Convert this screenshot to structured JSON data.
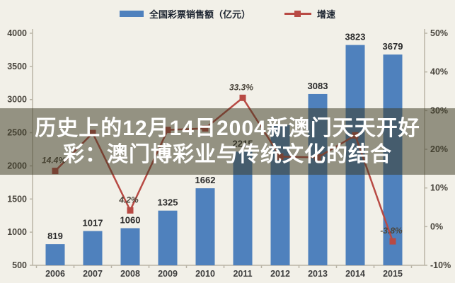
{
  "legend": {
    "series1_label": "全国彩票销售额（亿元）",
    "series2_label": "增速"
  },
  "overlay": {
    "line1": "历史上的12月14日2004新澳门天天开好",
    "line2": "彩：澳门博彩业与传统文化的结合"
  },
  "chart_data": {
    "type": "bar",
    "subtype": "bar+line combo",
    "categories": [
      "2006",
      "2007",
      "2008",
      "2009",
      "2010",
      "2011",
      "2012",
      "2013",
      "2014",
      "2015"
    ],
    "series": [
      {
        "name": "全国彩票销售额（亿元）",
        "type": "bar",
        "axis": "left",
        "values": [
          819,
          1017,
          1060,
          1325,
          1662,
          2215,
          2615,
          3083,
          3823,
          3679
        ],
        "labels": [
          "819",
          "1017",
          "1060",
          "1325",
          "1662",
          "2215",
          "",
          "3083",
          "3823",
          "3679"
        ]
      },
      {
        "name": "增速",
        "type": "line",
        "axis": "right",
        "values": [
          14.4,
          24.2,
          4.2,
          25.0,
          25.4,
          33.3,
          18.1,
          17.9,
          23.6,
          -3.8
        ],
        "labels": [
          "14.4%",
          "",
          "4.2%",
          "",
          "",
          "33.3%",
          "",
          "",
          "",
          "-3.8%"
        ]
      }
    ],
    "left_axis": {
      "min": 500,
      "max": 4000,
      "ticks": [
        "4000",
        "3500",
        "3000",
        "2500",
        "2000",
        "1500",
        "1000",
        "500"
      ]
    },
    "right_axis": {
      "min": -10,
      "max": 50,
      "ticks": [
        "50%",
        "40%",
        "30%",
        "20%",
        "10%",
        "0%",
        "-10%"
      ]
    },
    "legend_position": "top",
    "grid": false,
    "colors": {
      "bar": "#4f81bd",
      "line": "#b84a44",
      "axis": "#b9b4a6",
      "bar_label": "#2b2b2b",
      "point_label": "#4c463c",
      "tick_label": "#4a463e",
      "background": "#f2f0e8",
      "overlay_band": "rgba(62,60,36,0.52)",
      "overlay_text": "#ffffff"
    }
  }
}
